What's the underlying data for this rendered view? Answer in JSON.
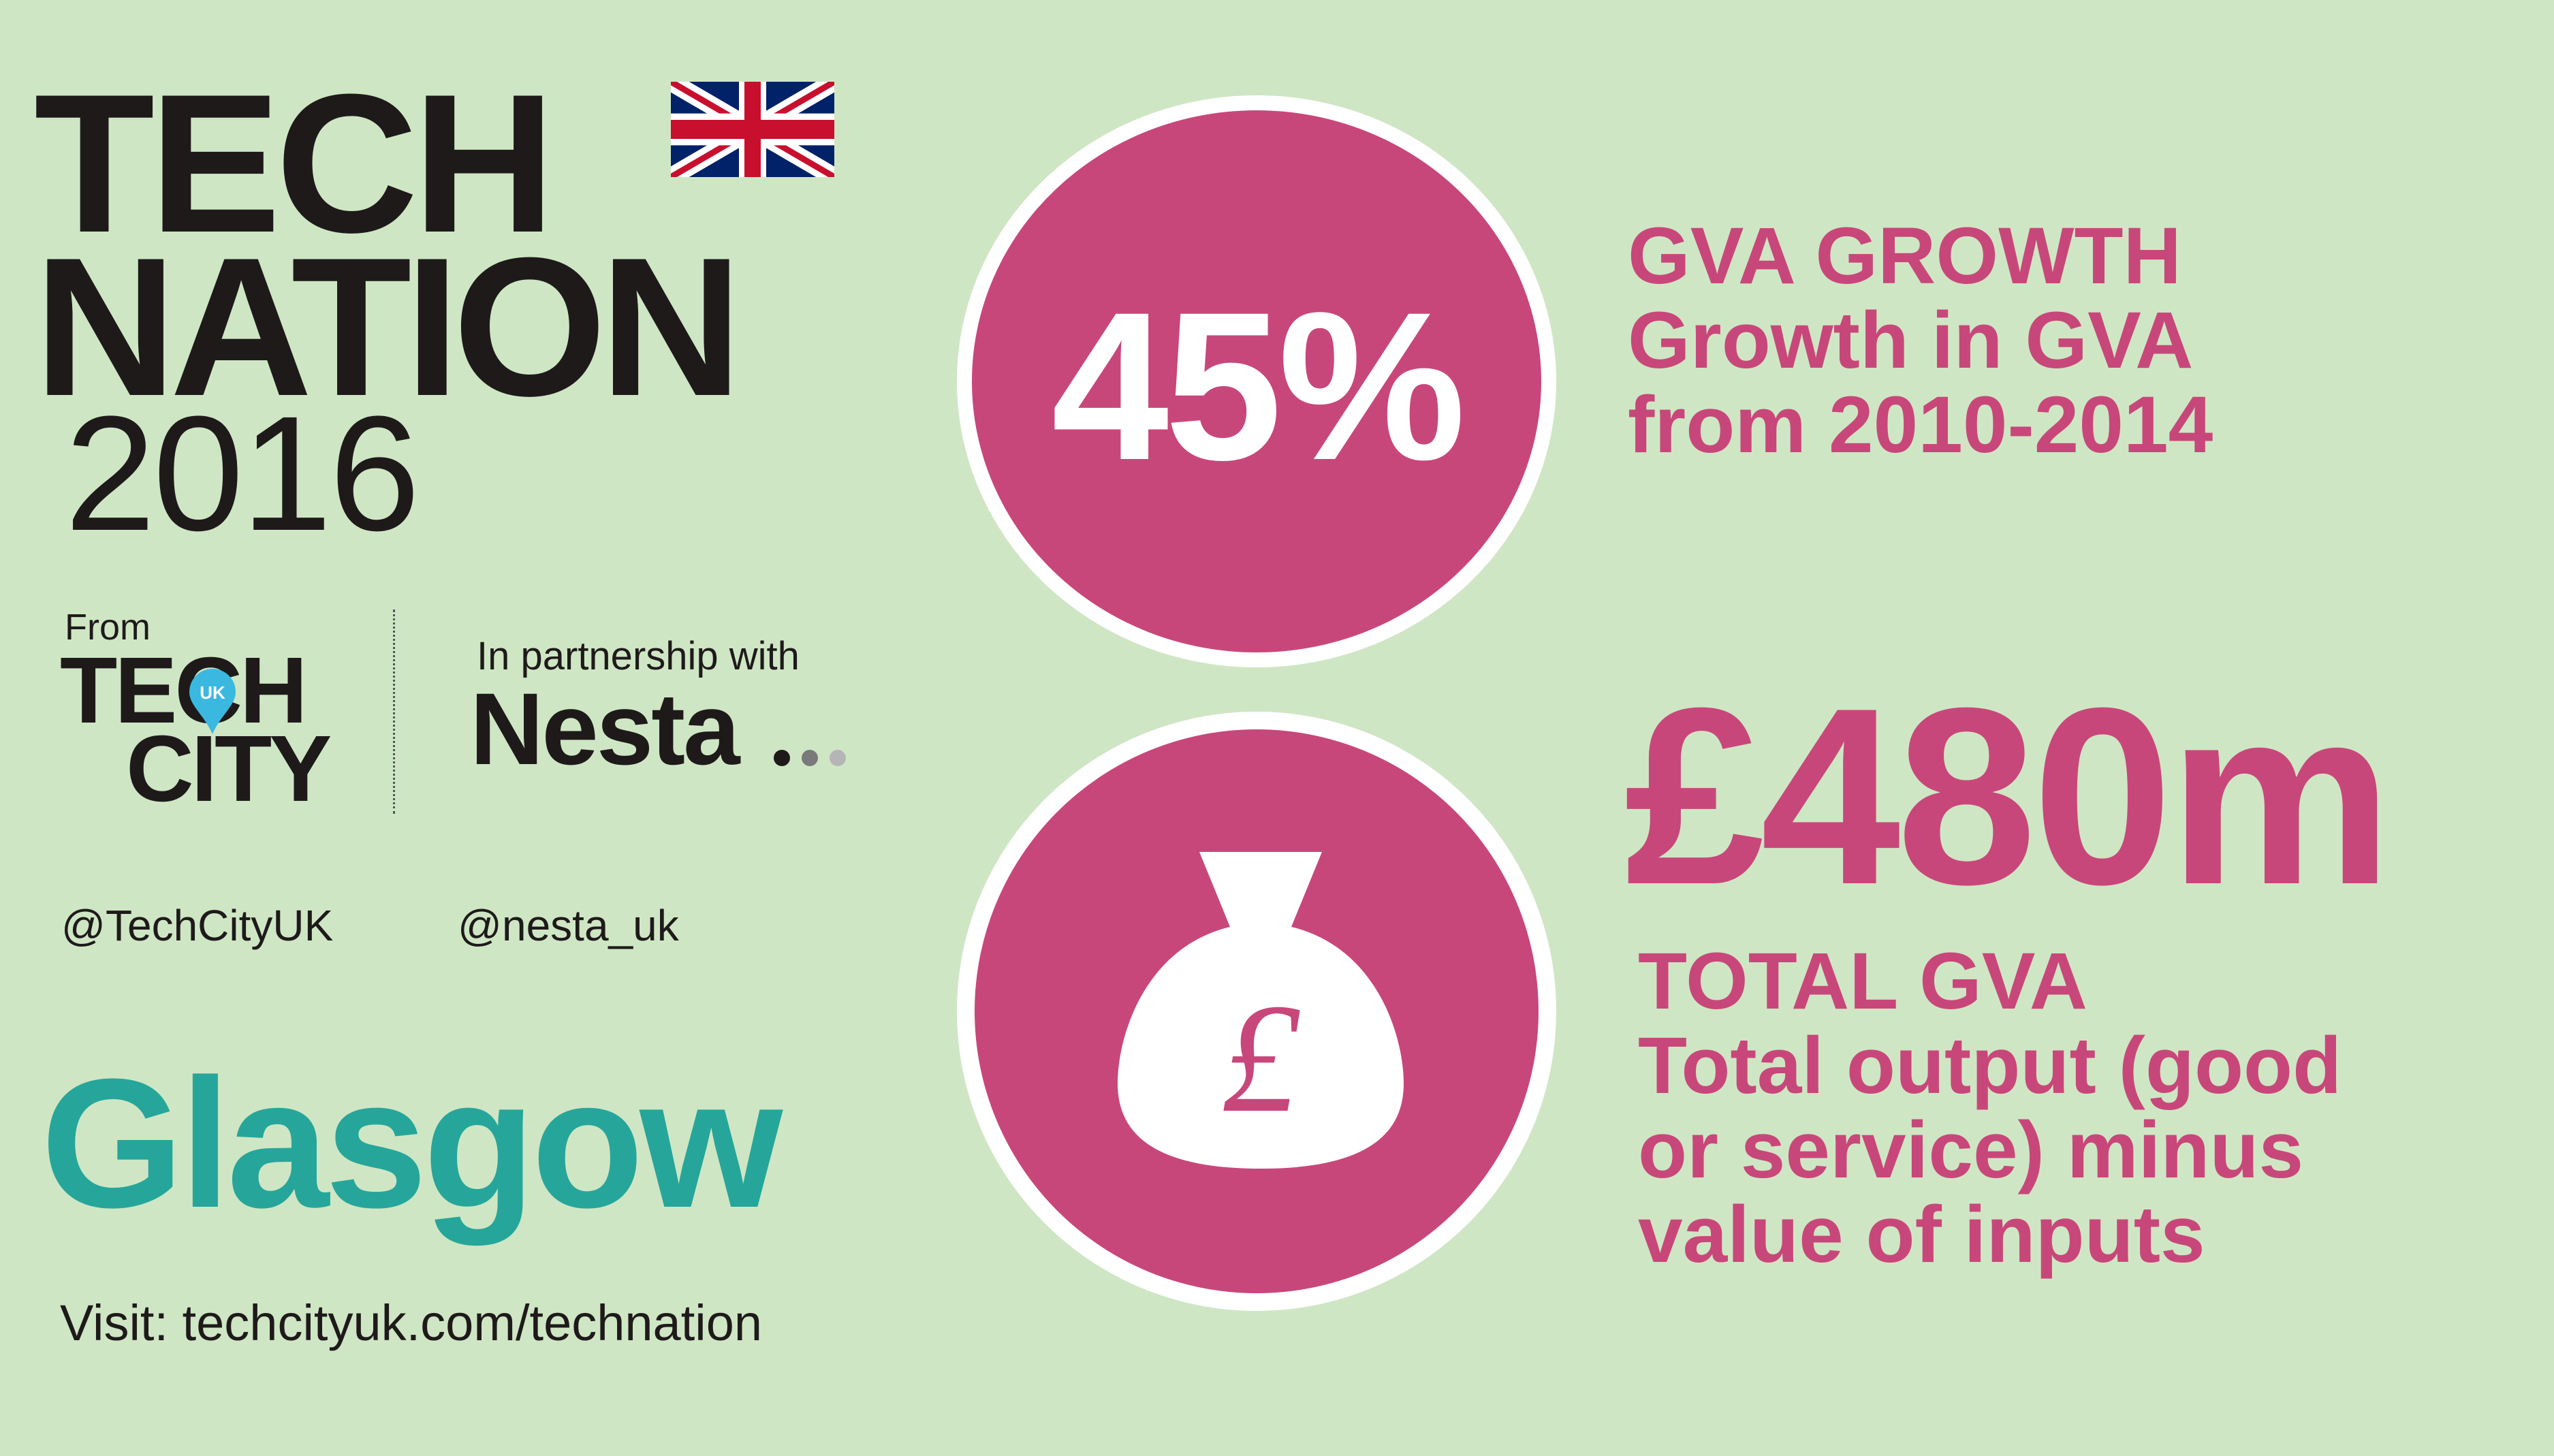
{
  "header": {
    "title_line1": "TECH",
    "title_line2": "NATION",
    "title_year": "2016",
    "flag_icon": "union-jack-flag-icon"
  },
  "credits": {
    "from_label": "From",
    "techcity_logo": {
      "line1": "TECH",
      "line2": "CITY",
      "pin_text": "UK",
      "pin_color": "#3bb8e0"
    },
    "partnership_label": "In partnership with",
    "partner_logo": {
      "text": "Nesta",
      "dot_colors": [
        "#1e1a1a",
        "#7a7a7a",
        "#b5b5b5"
      ]
    }
  },
  "handles": {
    "techcity": "@TechCityUK",
    "nesta": "@nesta_uk"
  },
  "city": "Glasgow",
  "visit": "Visit: techcityuk.com/technation",
  "stats": {
    "growth": {
      "value": "45%",
      "lines": [
        "GVA GROWTH",
        "Growth in GVA",
        "from 2010-2014"
      ]
    },
    "total": {
      "value": "£480m",
      "icon": "money-bag-icon",
      "icon_symbol": "£",
      "lines": [
        "TOTAL GVA",
        "Total output (good",
        "or service) minus",
        "value of inputs"
      ]
    }
  },
  "colors": {
    "background": "#cfe6c4",
    "accent_pink": "#c8477a",
    "teal": "#26a69a",
    "dark": "#1e1a1a"
  }
}
